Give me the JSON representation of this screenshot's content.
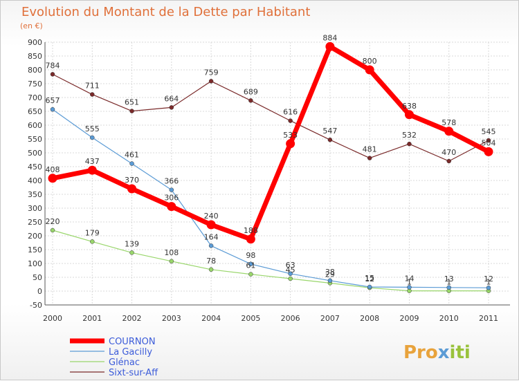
{
  "chart_data": {
    "type": "line",
    "title": "Evolution du Montant de la Dette par Habitant",
    "subtitle": "(en €)",
    "xlabel": "",
    "ylabel": "",
    "ylim": [
      -50,
      900
    ],
    "y_ticks": [
      "-50",
      "0",
      "50",
      "100",
      "150",
      "200",
      "250",
      "300",
      "350",
      "400",
      "450",
      "500",
      "550",
      "600",
      "650",
      "700",
      "750",
      "800",
      "850",
      "900"
    ],
    "x_ticks": [
      "2000",
      "2001",
      "2002",
      "2003",
      "2004",
      "2005",
      "2006",
      "2007",
      "2008",
      "2009",
      "2010",
      "2011"
    ],
    "grid": true,
    "legend_position": "bottom-left",
    "x": [
      2000,
      2001,
      2002,
      2003,
      2004,
      2005,
      2006,
      2007,
      2008,
      2009,
      2010,
      2011
    ],
    "series": [
      {
        "name": "COURNON",
        "color": "#ff0000",
        "values": [
          408,
          437,
          370,
          306,
          240,
          188,
          533,
          884,
          800,
          638,
          578,
          504
        ],
        "labels": [
          "408",
          "437",
          "370",
          "306",
          "240",
          "188",
          "533",
          "884",
          "800",
          "638",
          "578",
          "504"
        ]
      },
      {
        "name": "La Gacilly",
        "color": "#5b9bd5",
        "values": [
          657,
          555,
          461,
          366,
          164,
          98,
          63,
          38,
          15,
          14,
          13,
          12
        ],
        "labels": [
          "657",
          "555",
          "461",
          "366",
          "164",
          "98",
          "63",
          "38",
          "15",
          "14",
          "13",
          "12"
        ]
      },
      {
        "name": "Glénac",
        "color": "#99d66b",
        "values": [
          220,
          179,
          139,
          108,
          78,
          61,
          45,
          29,
          12,
          1,
          1,
          1
        ],
        "labels": [
          "220",
          "179",
          "139",
          "108",
          "78",
          "61",
          "45",
          "29",
          "12",
          "1",
          "1",
          "1"
        ]
      },
      {
        "name": "Sixt-sur-Aff",
        "color": "#7a2a2a",
        "values": [
          784,
          711,
          651,
          664,
          759,
          689,
          616,
          547,
          481,
          532,
          470,
          545
        ],
        "labels": [
          "784",
          "711",
          "651",
          "664",
          "759",
          "689",
          "616",
          "547",
          "481",
          "532",
          "470",
          "545"
        ]
      }
    ]
  },
  "logo": {
    "text": "Proxiti"
  }
}
